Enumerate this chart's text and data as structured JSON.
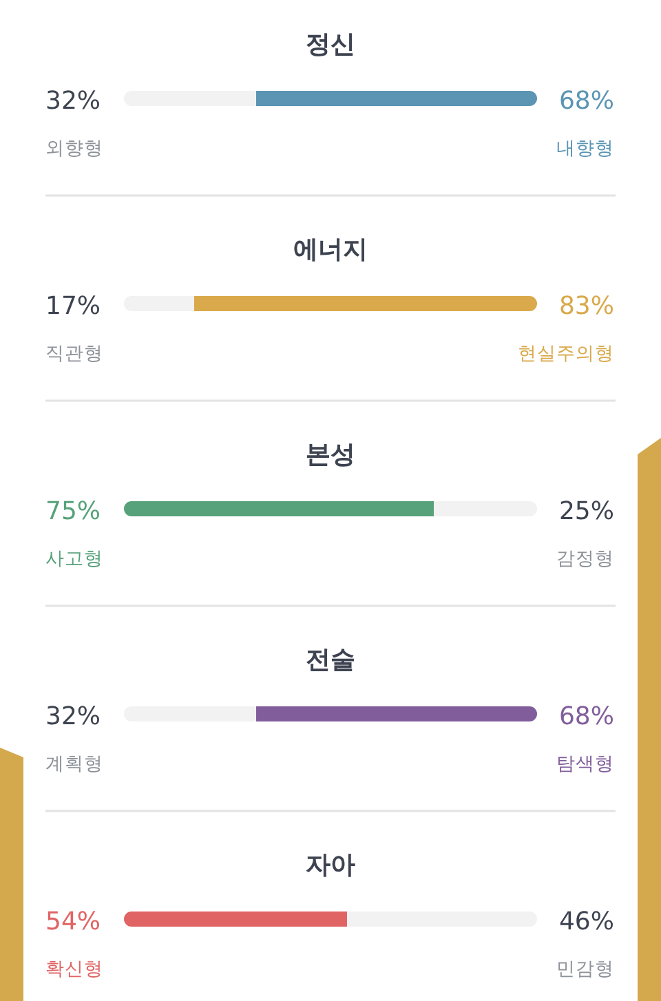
{
  "chart_data": [
    {
      "type": "bar",
      "orientation": "horizontal",
      "stacked": true,
      "title": "정신",
      "categories": [
        null
      ],
      "series": [
        {
          "name": "외향형",
          "color": "#f2f2f2",
          "values": [
            32
          ],
          "value_labels": [
            "32%"
          ]
        },
        {
          "name": "내향형",
          "color": "#5b95b3",
          "values": [
            68
          ],
          "value_labels": [
            "68%"
          ]
        }
      ]
    },
    {
      "type": "bar",
      "orientation": "horizontal",
      "stacked": true,
      "title": "에너지",
      "categories": [
        null
      ],
      "series": [
        {
          "name": "직관형",
          "color": "#f2f2f2",
          "values": [
            17
          ],
          "value_labels": [
            "17%"
          ]
        },
        {
          "name": "현실주의형",
          "color": "#d9a94b",
          "values": [
            83
          ],
          "value_labels": [
            "83%"
          ]
        }
      ]
    },
    {
      "type": "bar",
      "orientation": "horizontal",
      "stacked": true,
      "title": "본성",
      "categories": [
        null
      ],
      "series": [
        {
          "name": "사고형",
          "color": "#57a27a",
          "values": [
            75
          ],
          "value_labels": [
            "75%"
          ]
        },
        {
          "name": "감정형",
          "color": "#f2f2f2",
          "values": [
            25
          ],
          "value_labels": [
            "25%"
          ]
        }
      ]
    },
    {
      "type": "bar",
      "orientation": "horizontal",
      "stacked": true,
      "title": "전술",
      "categories": [
        null
      ],
      "series": [
        {
          "name": "계획형",
          "color": "#f2f2f2",
          "values": [
            32
          ],
          "value_labels": [
            "32%"
          ]
        },
        {
          "name": "탐색형",
          "color": "#815e9b",
          "values": [
            68
          ],
          "value_labels": [
            "68%"
          ]
        }
      ]
    },
    {
      "type": "bar",
      "orientation": "horizontal",
      "stacked": true,
      "title": "자아",
      "categories": [
        null
      ],
      "series": [
        {
          "name": "확신형",
          "color": "#e06464",
          "values": [
            54
          ],
          "value_labels": [
            "54%"
          ]
        },
        {
          "name": "민감형",
          "color": "#f2f2f2",
          "values": [
            46
          ],
          "value_labels": [
            "46%"
          ]
        }
      ]
    }
  ]
}
